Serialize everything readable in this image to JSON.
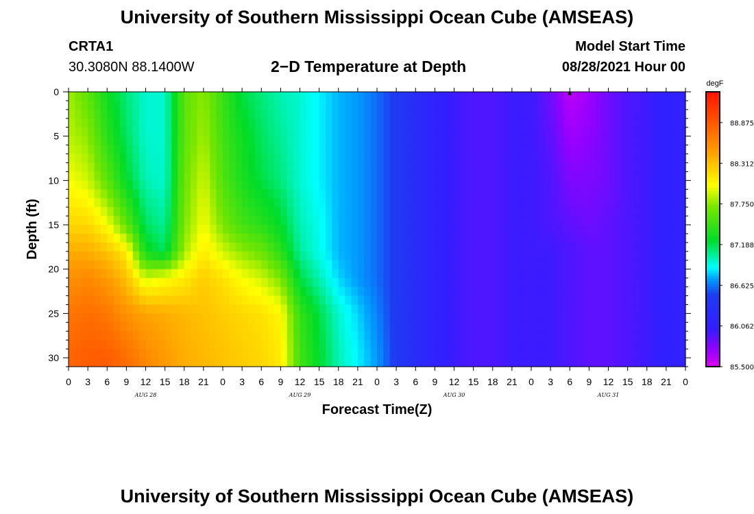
{
  "header": {
    "title": "University of Southern Mississippi Ocean Cube (AMSEAS)",
    "station": "CRTA1",
    "coords": "30.3080N  88.1400W",
    "plot_title": "2−D Temperature at Depth",
    "model_start_label": "Model Start Time",
    "model_start_value": "08/28/2021 Hour 00"
  },
  "footer": {
    "title": "University of Southern Mississippi Ocean Cube (AMSEAS)"
  },
  "chart_data": {
    "type": "heatmap",
    "title": "2−D Temperature at Depth",
    "xlabel": "Forecast Time(Z)",
    "ylabel": "Depth (ft)",
    "x_hours_range": [
      0,
      96
    ],
    "x_tick_step_hours": 3,
    "x_tick_labels": [
      "0",
      "3",
      "6",
      "9",
      "12",
      "15",
      "18",
      "21",
      "0",
      "3",
      "6",
      "9",
      "12",
      "15",
      "18",
      "21",
      "0",
      "3",
      "6",
      "9",
      "12",
      "15",
      "18",
      "21",
      "0",
      "3",
      "6",
      "9",
      "12",
      "15",
      "18",
      "21",
      "0"
    ],
    "date_labels": [
      {
        "label": "AUG 28",
        "hour": 12
      },
      {
        "label": "AUG 29",
        "hour": 36
      },
      {
        "label": "AUG 30",
        "hour": 60
      },
      {
        "label": "AUG 31",
        "hour": 84
      }
    ],
    "y_range": [
      0,
      31
    ],
    "y_ticks": [
      0,
      5,
      10,
      15,
      20,
      25,
      30
    ],
    "y_reversed": true,
    "colorbar": {
      "unit": "degF",
      "min": 85.5,
      "max": 89.3,
      "ticks": [
        "88.875",
        "88.312",
        "87.750",
        "87.188",
        "86.625",
        "86.062",
        "85.500"
      ],
      "tick_values": [
        88.875,
        88.312,
        87.75,
        87.188,
        86.625,
        86.062,
        85.5
      ]
    },
    "depths_ft": [
      0,
      5,
      10,
      15,
      18,
      21,
      25,
      30
    ],
    "time_hours": [
      0,
      3,
      6,
      9,
      12,
      15,
      18,
      21,
      24,
      27,
      30,
      33,
      36,
      39,
      42,
      45,
      48,
      51,
      54,
      57,
      60,
      63,
      66,
      69,
      72,
      75,
      78,
      81,
      84,
      87,
      90,
      93,
      96
    ],
    "temperature_degF": [
      [
        87.8,
        87.6,
        87.3,
        87.1,
        86.95,
        86.95,
        87.6,
        87.75,
        87.45,
        87.2,
        87.1,
        87.0,
        86.95,
        86.85,
        86.75,
        86.7,
        86.6,
        86.45,
        86.25,
        86.1,
        86.0,
        85.95,
        85.95,
        86.0,
        86.0,
        85.85,
        85.6,
        85.7,
        85.85,
        85.95,
        86.0,
        86.05,
        86.1
      ],
      [
        87.85,
        87.75,
        87.4,
        87.15,
        86.95,
        86.95,
        87.6,
        87.8,
        87.5,
        87.3,
        87.15,
        87.05,
        86.95,
        86.85,
        86.75,
        86.7,
        86.6,
        86.45,
        86.25,
        86.1,
        86.0,
        85.95,
        85.95,
        86.0,
        86.0,
        85.9,
        85.7,
        85.75,
        85.85,
        85.95,
        86.0,
        86.05,
        86.1
      ],
      [
        88.0,
        87.9,
        87.6,
        87.25,
        87.0,
        86.95,
        87.65,
        87.9,
        87.55,
        87.35,
        87.2,
        87.1,
        86.95,
        86.85,
        86.75,
        86.7,
        86.6,
        86.45,
        86.25,
        86.1,
        86.0,
        85.95,
        85.95,
        86.0,
        86.0,
        85.95,
        85.8,
        85.8,
        85.85,
        85.95,
        86.0,
        86.05,
        86.1
      ],
      [
        88.2,
        88.2,
        88.0,
        87.6,
        87.15,
        87.05,
        87.7,
        88.0,
        87.7,
        87.5,
        87.4,
        87.25,
        87.0,
        86.9,
        86.75,
        86.7,
        86.6,
        86.45,
        86.25,
        86.1,
        86.0,
        85.95,
        85.95,
        86.0,
        86.0,
        85.95,
        85.9,
        85.85,
        85.9,
        85.95,
        86.0,
        86.05,
        86.1
      ],
      [
        88.4,
        88.4,
        88.3,
        88.1,
        87.3,
        87.15,
        87.8,
        88.1,
        87.9,
        87.75,
        87.65,
        87.4,
        87.05,
        86.9,
        86.75,
        86.7,
        86.6,
        86.45,
        86.25,
        86.1,
        86.0,
        85.95,
        85.95,
        86.0,
        86.0,
        86.0,
        85.95,
        85.9,
        85.9,
        85.95,
        86.0,
        86.05,
        86.1
      ],
      [
        88.55,
        88.6,
        88.5,
        88.3,
        87.9,
        88.0,
        88.1,
        88.25,
        88.15,
        88.0,
        87.9,
        87.7,
        87.2,
        87.0,
        86.8,
        86.7,
        86.6,
        86.45,
        86.25,
        86.1,
        86.0,
        85.95,
        85.95,
        86.0,
        86.0,
        86.0,
        85.95,
        85.9,
        85.9,
        85.95,
        86.0,
        86.05,
        86.1
      ],
      [
        88.7,
        88.75,
        88.7,
        88.55,
        88.45,
        88.4,
        88.35,
        88.3,
        88.25,
        88.2,
        88.15,
        88.05,
        87.45,
        87.2,
        86.95,
        86.8,
        86.65,
        86.45,
        86.25,
        86.1,
        86.0,
        85.95,
        85.95,
        86.0,
        86.0,
        86.0,
        85.95,
        85.9,
        85.9,
        85.95,
        86.0,
        86.05,
        86.1
      ],
      [
        88.8,
        88.85,
        88.85,
        88.75,
        88.6,
        88.5,
        88.4,
        88.35,
        88.3,
        88.25,
        88.2,
        88.1,
        87.5,
        87.25,
        87.0,
        86.85,
        86.7,
        86.45,
        86.25,
        86.1,
        86.0,
        85.95,
        85.95,
        86.0,
        86.0,
        86.0,
        85.95,
        85.9,
        85.9,
        85.95,
        86.0,
        86.05,
        86.1
      ]
    ]
  }
}
